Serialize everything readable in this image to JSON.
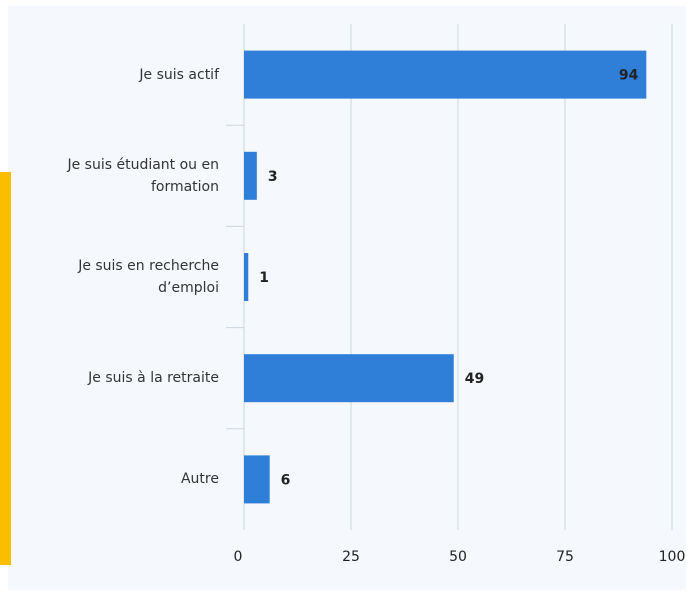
{
  "chart_data": {
    "type": "bar",
    "orientation": "horizontal",
    "categories": [
      "Je suis actif",
      "Je suis étudiant ou en formation",
      "Je suis en recherche d’emploi",
      "Je suis à la retraite",
      "Autre"
    ],
    "values": [
      94,
      3,
      1,
      49,
      6
    ],
    "color": "#2f7ed8",
    "xlim": [
      0,
      100
    ],
    "xticks": [
      0,
      25,
      50,
      75,
      100
    ],
    "grid": true
  }
}
